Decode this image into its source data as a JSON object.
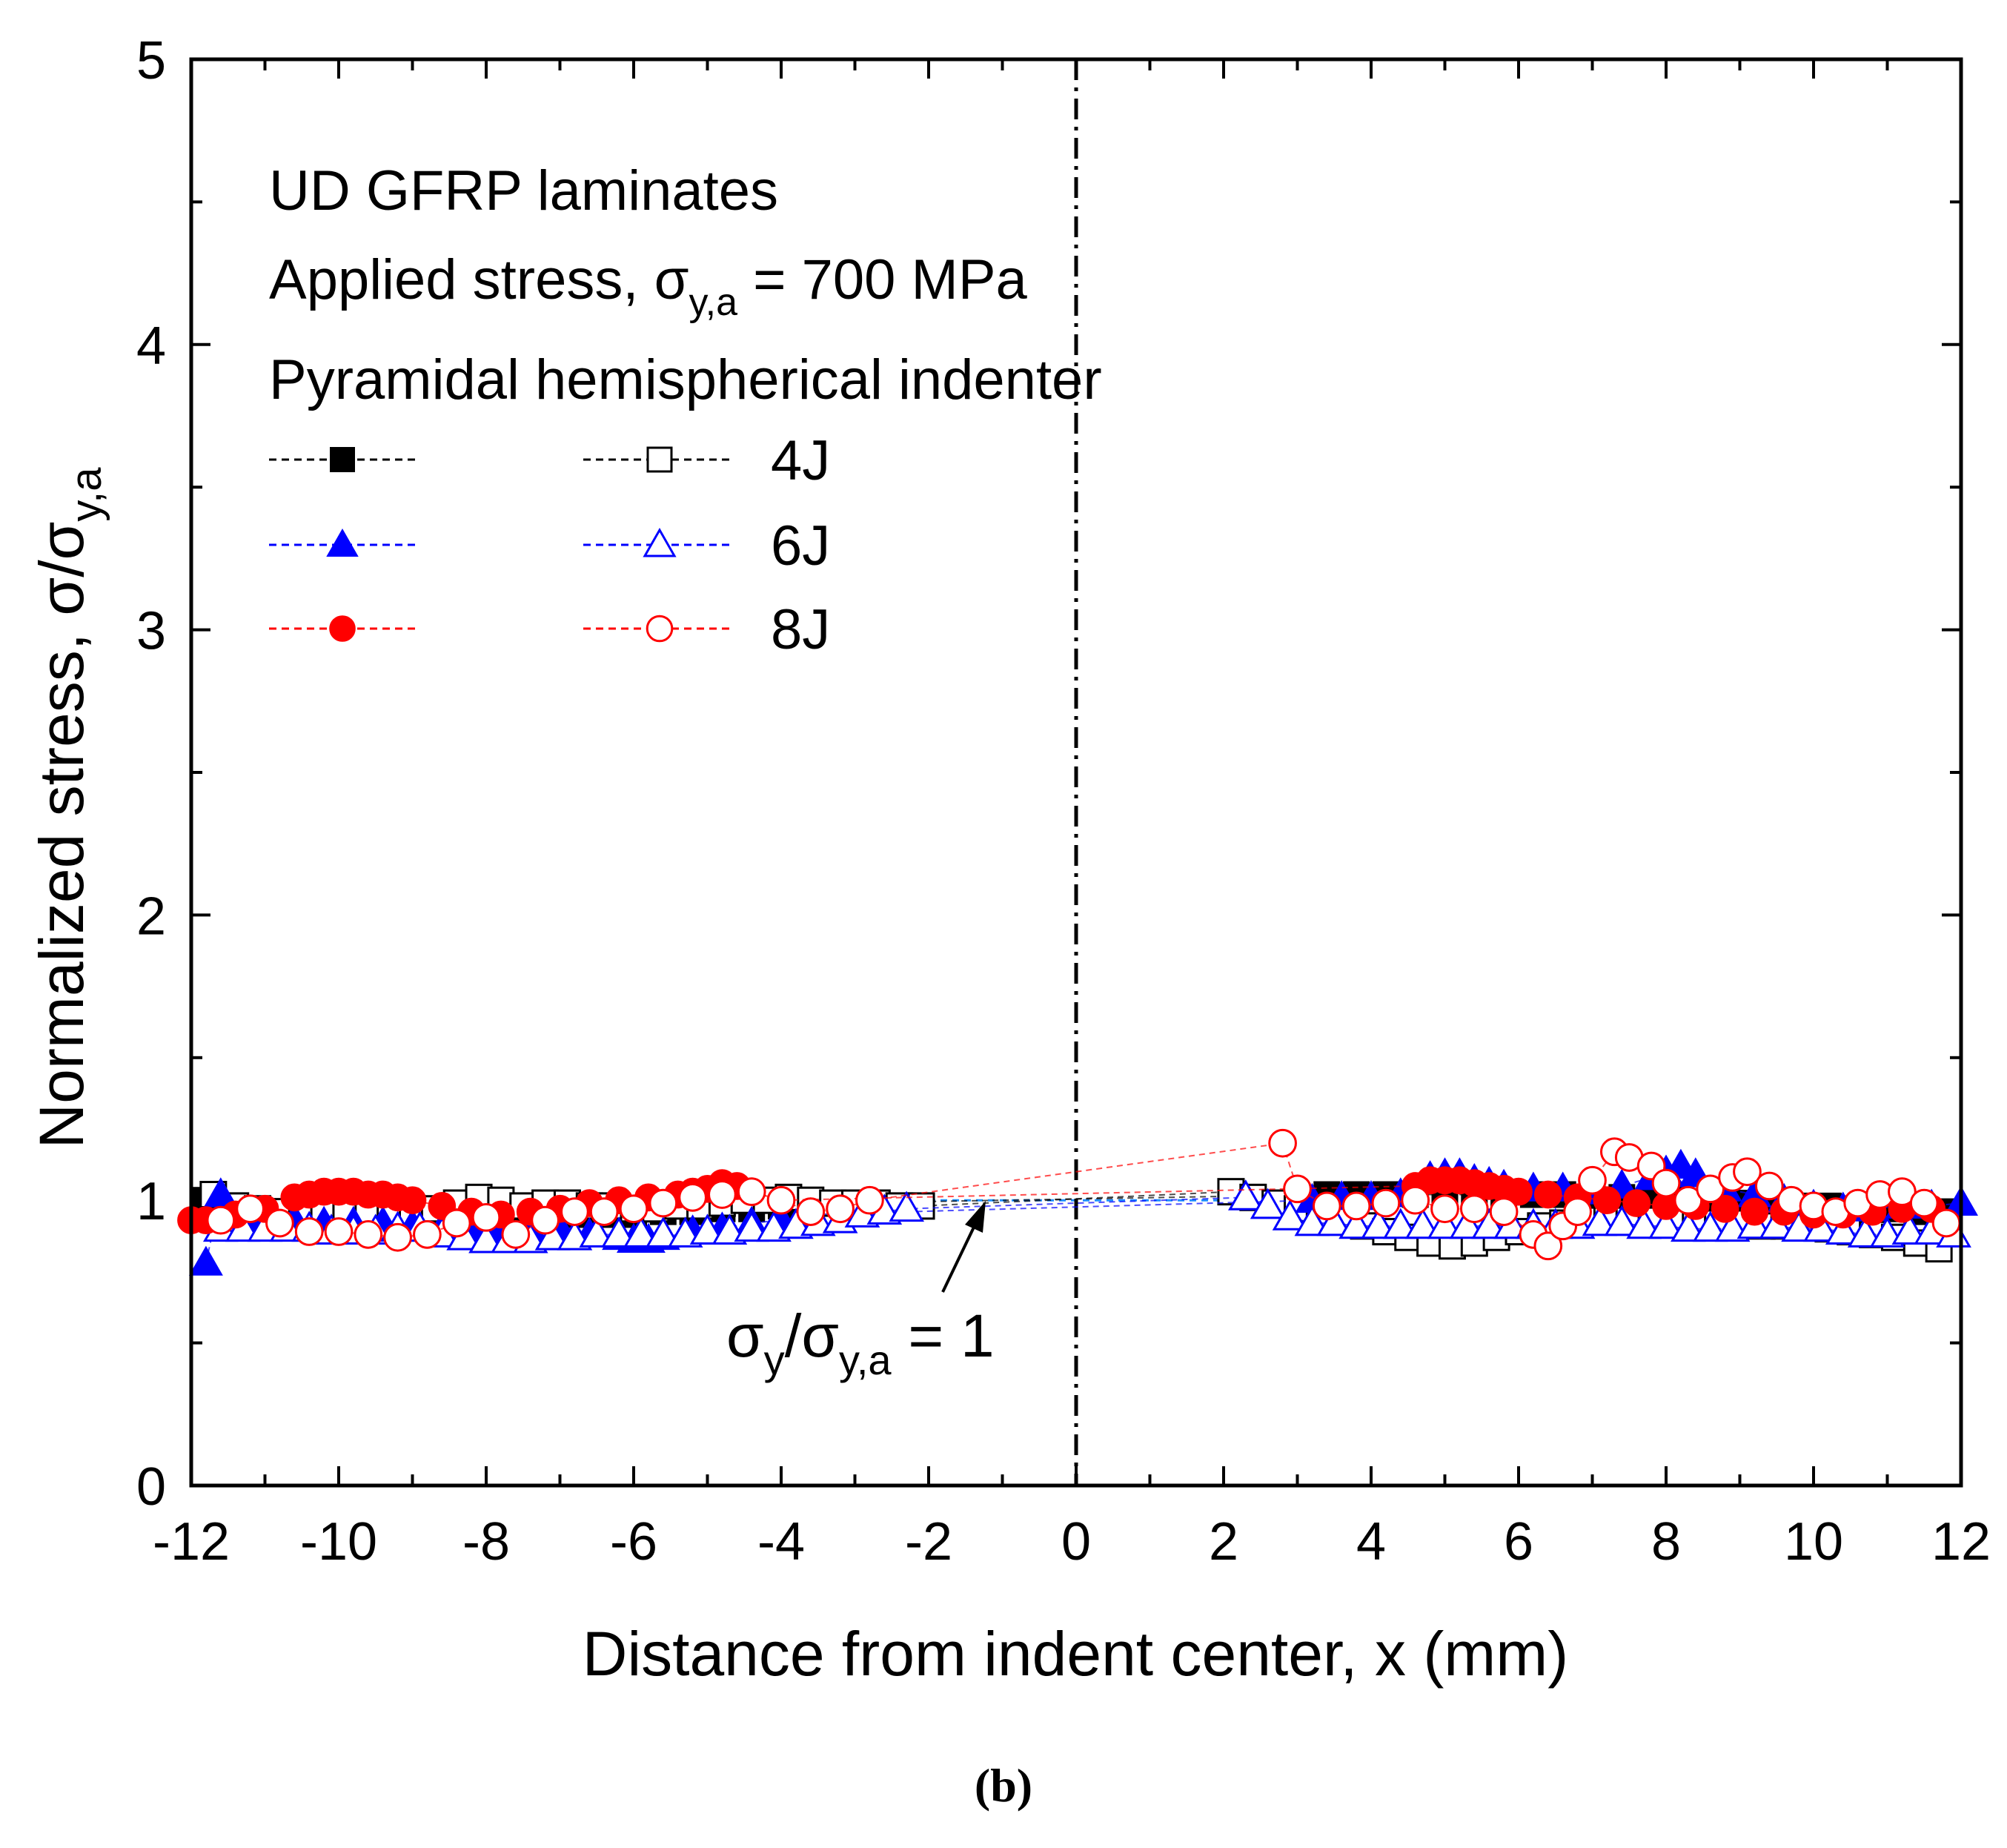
{
  "panel_label": "(b)",
  "chart_data": {
    "type": "scatter",
    "title": "",
    "xlabel": "Distance from indent center, x (mm)",
    "ylabel": {
      "main": "Normalized stress, σ/σ",
      "sub": "y,a"
    },
    "xlim": [
      -12,
      12
    ],
    "ylim": [
      0,
      5
    ],
    "xticks": [
      "-12",
      "-10",
      "-8",
      "-6",
      "-4",
      "-2",
      "0",
      "2",
      "4",
      "6",
      "8",
      "10",
      "12"
    ],
    "yticks": [
      "0",
      "1",
      "2",
      "3",
      "4",
      "5"
    ],
    "grid": false,
    "annotations": {
      "line1": "UD GFRP laminates",
      "line2_main": "Applied stress, σ",
      "line2_sub": "y,a",
      "line2_tail": " = 700 MPa",
      "line3": "Pyramidal hemispherical indenter",
      "ref_label": {
        "a": "σ",
        "a_sub": "y",
        "b": "/σ",
        "b_sub": "y,a",
        "c": " = 1"
      },
      "indent_center_x": 0,
      "reference_y": 1
    },
    "legend": {
      "placement": "top-left",
      "entries": [
        {
          "label": "4J",
          "filled_color": "#000000",
          "marker": "square"
        },
        {
          "label": "6J",
          "filled_color": "#0000ff",
          "marker": "triangle"
        },
        {
          "label": "8J",
          "filled_color": "#ff0000",
          "marker": "circle"
        }
      ]
    },
    "colors": {
      "black": "#000000",
      "blue": "#0000ff",
      "red": "#ff0000",
      "ref_line": "#1e90ff"
    },
    "series": [
      {
        "name": "4J filled",
        "marker": "square",
        "filled": true,
        "color": "#000000",
        "x": [
          -11.8,
          -11.5,
          -11.2,
          -10.8,
          -10.4,
          -10.0,
          -9.6,
          -9.2,
          -8.8,
          -8.4,
          -8.0,
          -7.6,
          -7.2,
          -6.8,
          -6.4,
          -6.0,
          -5.6,
          -5.2,
          -4.8,
          -4.4,
          -4.0,
          -3.6,
          -3.2,
          3.4,
          3.8,
          4.2,
          4.6,
          5.0,
          5.4,
          5.8,
          6.2,
          6.6,
          7.0,
          7.4,
          7.8,
          8.2,
          8.6,
          9.0,
          9.4,
          9.8,
          10.2,
          10.6,
          11.0,
          11.4,
          11.8
        ],
        "y": [
          1.0,
          0.98,
          0.97,
          0.96,
          0.96,
          0.95,
          0.95,
          0.95,
          0.94,
          0.94,
          0.94,
          0.94,
          0.94,
          0.95,
          0.95,
          0.95,
          0.96,
          0.96,
          0.97,
          0.97,
          0.98,
          0.98,
          0.99,
          1.02,
          1.02,
          1.02,
          1.02,
          1.02,
          1.02,
          1.02,
          1.02,
          1.02,
          1.01,
          1.01,
          1.0,
          1.0,
          1.0,
          0.99,
          0.99,
          0.98,
          0.98,
          0.97,
          0.97,
          0.96,
          0.96
        ]
      },
      {
        "name": "4J open",
        "marker": "square",
        "filled": false,
        "color": "#000000",
        "x": [
          -11.7,
          -11.4,
          -11.1,
          -10.8,
          -10.5,
          -10.2,
          -9.9,
          -9.6,
          -9.3,
          -9.0,
          -8.7,
          -8.4,
          -8.1,
          -7.8,
          -7.5,
          -7.2,
          -6.9,
          -6.6,
          -6.3,
          -6.0,
          -5.7,
          -5.4,
          -5.1,
          -4.8,
          -4.5,
          -4.2,
          -3.9,
          -3.6,
          -3.3,
          -3.0,
          -2.7,
          -2.4,
          -2.1,
          2.1,
          2.4,
          2.7,
          3.0,
          3.3,
          3.6,
          3.9,
          4.2,
          4.5,
          4.8,
          5.1,
          5.4,
          5.7,
          6.0,
          6.3,
          6.6,
          6.9,
          7.2,
          7.5,
          7.8,
          8.1,
          8.4,
          8.7,
          9.0,
          9.3,
          9.6,
          9.9,
          10.2,
          10.5,
          10.8,
          11.1,
          11.4,
          11.7
        ],
        "y": [
          1.02,
          0.98,
          0.97,
          0.96,
          0.97,
          0.97,
          0.97,
          0.96,
          0.96,
          0.95,
          0.97,
          0.99,
          1.01,
          1.0,
          0.98,
          0.99,
          0.99,
          0.98,
          0.98,
          0.97,
          0.97,
          0.98,
          0.98,
          0.99,
          1.0,
          1.0,
          1.01,
          1.0,
          0.99,
          0.99,
          0.99,
          0.98,
          0.98,
          1.03,
          1.01,
          0.99,
          0.97,
          0.95,
          0.93,
          0.91,
          0.89,
          0.87,
          0.85,
          0.84,
          0.85,
          0.87,
          0.89,
          0.91,
          0.92,
          0.93,
          0.93,
          0.93,
          0.93,
          0.92,
          0.92,
          0.92,
          0.92,
          0.91,
          0.91,
          0.91,
          0.9,
          0.89,
          0.88,
          0.87,
          0.85,
          0.83
        ]
      },
      {
        "name": "6J filled",
        "marker": "triangle",
        "filled": true,
        "color": "#0000ff",
        "x": [
          -11.8,
          -11.6,
          -11.3,
          -11.0,
          -10.6,
          -10.2,
          -9.8,
          -9.4,
          -9.0,
          -8.6,
          -8.2,
          -7.8,
          -7.4,
          -7.0,
          -6.6,
          -6.2,
          -6.0,
          -5.8,
          -5.6,
          -5.2,
          -4.8,
          -4.4,
          -4.0,
          -3.6,
          3.2,
          3.6,
          4.0,
          4.4,
          4.8,
          5.0,
          5.2,
          5.4,
          5.6,
          5.8,
          6.2,
          6.6,
          7.0,
          7.4,
          7.8,
          8.0,
          8.2,
          8.4,
          8.8,
          9.2,
          9.6,
          10.0,
          10.4,
          10.8,
          11.2,
          11.6,
          12.0
        ],
        "y": [
          0.78,
          1.02,
          0.95,
          0.93,
          0.93,
          0.92,
          0.92,
          0.92,
          0.91,
          0.9,
          0.9,
          0.89,
          0.9,
          0.9,
          0.88,
          0.87,
          0.86,
          0.86,
          0.87,
          0.89,
          0.9,
          0.92,
          0.93,
          0.95,
          1.0,
          1.01,
          1.01,
          1.02,
          1.08,
          1.09,
          1.09,
          1.07,
          1.06,
          1.05,
          1.04,
          1.04,
          1.03,
          1.05,
          1.08,
          1.1,
          1.12,
          1.09,
          1.04,
          1.02,
          1.0,
          0.98,
          0.97,
          0.97,
          0.98,
          0.98,
          0.99
        ]
      },
      {
        "name": "6J open",
        "marker": "triangle",
        "filled": false,
        "color": "#0000ff",
        "x": [
          -11.6,
          -11.3,
          -11.0,
          -10.7,
          -10.4,
          -10.1,
          -9.8,
          -9.5,
          -9.2,
          -8.9,
          -8.6,
          -8.3,
          -8.0,
          -7.7,
          -7.4,
          -7.1,
          -6.8,
          -6.5,
          -6.2,
          -5.9,
          -5.6,
          -5.3,
          -5.0,
          -4.7,
          -4.4,
          -4.1,
          -3.8,
          -3.5,
          -3.2,
          -2.9,
          -2.6,
          -2.3,
          2.3,
          2.6,
          2.9,
          3.2,
          3.5,
          3.8,
          4.1,
          4.4,
          4.7,
          5.0,
          5.3,
          5.6,
          5.9,
          6.2,
          6.5,
          6.8,
          7.1,
          7.4,
          7.7,
          8.0,
          8.3,
          8.6,
          8.9,
          9.2,
          9.5,
          9.8,
          10.1,
          10.4,
          10.7,
          11.0,
          11.3,
          11.6,
          11.9
        ],
        "y": [
          0.9,
          0.9,
          0.9,
          0.9,
          0.9,
          0.89,
          0.89,
          0.89,
          0.9,
          0.9,
          0.88,
          0.87,
          0.86,
          0.86,
          0.86,
          0.87,
          0.87,
          0.88,
          0.88,
          0.88,
          0.88,
          0.88,
          0.89,
          0.89,
          0.9,
          0.9,
          0.91,
          0.92,
          0.93,
          0.95,
          0.96,
          0.97,
          1.01,
          0.98,
          0.94,
          0.92,
          0.92,
          0.91,
          0.91,
          0.91,
          0.91,
          0.91,
          0.91,
          0.91,
          0.91,
          0.91,
          0.91,
          0.91,
          0.92,
          0.92,
          0.91,
          0.91,
          0.9,
          0.9,
          0.9,
          0.91,
          0.91,
          0.9,
          0.9,
          0.89,
          0.88,
          0.88,
          0.89,
          0.89,
          0.88
        ]
      },
      {
        "name": "8J filled",
        "marker": "circle",
        "filled": true,
        "color": "#ff0000",
        "x": [
          -12.0,
          -11.8,
          -11.4,
          -11.0,
          -10.6,
          -10.4,
          -10.2,
          -10.0,
          -9.8,
          -9.6,
          -9.4,
          -9.2,
          -9.0,
          -8.6,
          -8.2,
          -7.8,
          -7.4,
          -7.0,
          -6.6,
          -6.2,
          -5.8,
          -5.4,
          -5.2,
          -5.0,
          -4.8,
          -4.6,
          -4.4,
          -4.0,
          4.6,
          4.8,
          5.0,
          5.2,
          5.4,
          5.6,
          5.8,
          6.0,
          6.4,
          6.8,
          7.2,
          7.6,
          8.0,
          8.4,
          8.8,
          9.2,
          9.6,
          10.0,
          10.4,
          10.8,
          11.2,
          11.6
        ],
        "y": [
          0.93,
          0.93,
          0.95,
          0.97,
          1.01,
          1.02,
          1.03,
          1.03,
          1.03,
          1.02,
          1.02,
          1.01,
          1.0,
          0.98,
          0.96,
          0.95,
          0.96,
          0.97,
          0.99,
          1.0,
          1.01,
          1.02,
          1.03,
          1.04,
          1.06,
          1.05,
          1.03,
          1.0,
          1.05,
          1.07,
          1.07,
          1.07,
          1.06,
          1.05,
          1.04,
          1.03,
          1.02,
          1.01,
          1.0,
          0.99,
          0.98,
          0.98,
          0.97,
          0.96,
          0.96,
          0.95,
          0.95,
          0.96,
          0.97,
          0.97
        ]
      },
      {
        "name": "8J open",
        "marker": "circle",
        "filled": false,
        "color": "#ff0000",
        "x": [
          -11.6,
          -11.2,
          -10.8,
          -10.4,
          -10.0,
          -9.6,
          -9.2,
          -8.8,
          -8.4,
          -8.0,
          -7.6,
          -7.2,
          -6.8,
          -6.4,
          -6.0,
          -5.6,
          -5.2,
          -4.8,
          -4.4,
          -4.0,
          -3.6,
          -3.2,
          -2.8,
          2.8,
          3.0,
          3.4,
          3.8,
          4.2,
          4.6,
          5.0,
          5.4,
          5.8,
          6.2,
          6.4,
          6.6,
          6.8,
          7.0,
          7.3,
          7.5,
          7.8,
          8.0,
          8.3,
          8.6,
          8.9,
          9.1,
          9.4,
          9.7,
          10.0,
          10.3,
          10.6,
          10.9,
          11.2,
          11.5,
          11.8
        ],
        "y": [
          0.93,
          0.97,
          0.92,
          0.89,
          0.89,
          0.88,
          0.87,
          0.88,
          0.92,
          0.94,
          0.88,
          0.93,
          0.96,
          0.96,
          0.97,
          0.99,
          1.01,
          1.02,
          1.03,
          1.0,
          0.96,
          0.97,
          1.0,
          1.2,
          1.04,
          0.98,
          0.98,
          0.99,
          1.0,
          0.97,
          0.97,
          0.96,
          0.88,
          0.84,
          0.91,
          0.96,
          1.07,
          1.17,
          1.15,
          1.12,
          1.06,
          1.0,
          1.04,
          1.08,
          1.1,
          1.05,
          1.0,
          0.98,
          0.96,
          0.99,
          1.02,
          1.03,
          0.99,
          0.92
        ]
      }
    ]
  }
}
